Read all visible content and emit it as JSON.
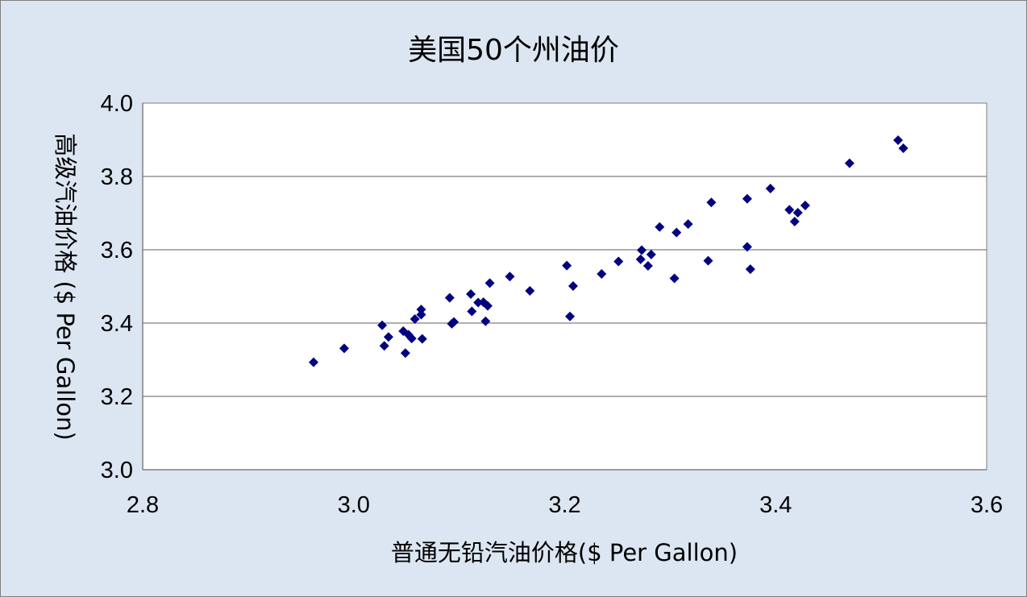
{
  "chart_data": {
    "type": "scatter",
    "title": "美国50个州油价",
    "xlabel": "普通无铅汽油价格($ Per Gallon)",
    "ylabel": "高级汽油价格 ($ Per Gallon)",
    "xlim": [
      2.8,
      3.6
    ],
    "ylim": [
      3.0,
      4.0
    ],
    "xticks": [
      "2.8",
      "3.0",
      "3.2",
      "3.4",
      "3.6"
    ],
    "yticks": [
      "3.0",
      "3.2",
      "3.4",
      "3.6",
      "3.8",
      "4.0"
    ],
    "grid": "horizontal",
    "marker": "diamond",
    "marker_color": "#000080",
    "legend": "none",
    "series": [
      {
        "x": [
          2.962,
          2.991,
          3.027,
          3.029,
          3.033,
          3.047,
          3.049,
          3.052,
          3.055,
          3.058,
          3.064,
          3.064,
          3.065,
          3.091,
          3.093,
          3.095,
          3.111,
          3.112,
          3.118,
          3.123,
          3.125,
          3.127,
          3.129,
          3.148,
          3.167,
          3.202,
          3.205,
          3.208,
          3.235,
          3.251,
          3.272,
          3.273,
          3.279,
          3.282,
          3.29,
          3.304,
          3.306,
          3.317,
          3.336,
          3.339,
          3.373,
          3.373,
          3.376,
          3.395,
          3.413,
          3.418,
          3.421,
          3.428,
          3.47,
          3.516,
          3.521
        ],
        "y": [
          3.293,
          3.331,
          3.394,
          3.338,
          3.362,
          3.378,
          3.318,
          3.368,
          3.358,
          3.411,
          3.423,
          3.437,
          3.357,
          3.469,
          3.398,
          3.403,
          3.479,
          3.432,
          3.456,
          3.457,
          3.405,
          3.447,
          3.509,
          3.527,
          3.488,
          3.557,
          3.418,
          3.501,
          3.534,
          3.568,
          3.574,
          3.599,
          3.556,
          3.587,
          3.662,
          3.522,
          3.647,
          3.67,
          3.57,
          3.729,
          3.608,
          3.739,
          3.547,
          3.767,
          3.709,
          3.677,
          3.701,
          3.721,
          3.836,
          3.899,
          3.877
        ]
      }
    ]
  }
}
